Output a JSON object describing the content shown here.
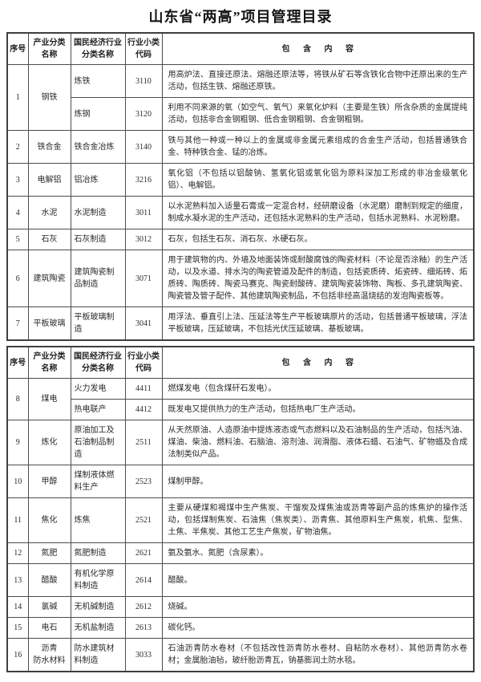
{
  "page": {
    "title": "山东省“两高”项目管理目录"
  },
  "columns": {
    "no": "序号",
    "category": "产业分类\n名称",
    "industry": "国民经济行业\n分类名称",
    "code": "行业小类\n代码",
    "content": "包 含 内 容"
  },
  "sections": [
    {
      "groups": [
        {
          "no": "1",
          "category": "钢铁",
          "rows": [
            {
              "industry": "炼铁",
              "code": "3110",
              "content": "用高炉法、直接还原法、熔融还原法等，将铁从矿石等含铁化合物中还原出来的生产活动，包括生铁、熔融还原铁。"
            },
            {
              "industry": "炼钢",
              "code": "3120",
              "content": "利用不同来源的氧（如空气、氧气）来氧化炉料（主要是生铁）所含杂质的金属提纯活动，包括非合金钢粗钢、低合金钢粗钢、合金钢粗钢。"
            }
          ]
        },
        {
          "no": "2",
          "category": "铁合金",
          "rows": [
            {
              "industry": "铁合金冶炼",
              "code": "3140",
              "content": "铁与其他一种或一种以上的金属或非金属元素组成的合金生产活动，包括普通铁合金、特种铁合金、锰的冶炼。"
            }
          ]
        },
        {
          "no": "3",
          "category": "电解铝",
          "rows": [
            {
              "industry": "铝冶炼",
              "code": "3216",
              "content": "氧化铝（不包括以铝酸钠、氢氧化铝或氧化铝为原料深加工形成的非冶金级氧化铝）、电解铝。"
            }
          ]
        },
        {
          "no": "4",
          "category": "水泥",
          "rows": [
            {
              "industry": "水泥制造",
              "code": "3011",
              "content": "以水泥熟料加入适量石膏或一定混合材，经研磨设备（水泥磨）磨制到规定的细度，制成水凝水泥的生产活动，还包括水泥熟料的生产活动，包括水泥熟料、水泥粉磨。"
            }
          ]
        },
        {
          "no": "5",
          "category": "石灰",
          "rows": [
            {
              "industry": "石灰制造",
              "code": "3012",
              "content": "石灰，包括生石灰、消石灰、水硬石灰。"
            }
          ]
        },
        {
          "no": "6",
          "category": "建筑陶瓷",
          "rows": [
            {
              "industry": "建筑陶瓷制品制造",
              "code": "3071",
              "content": "用于建筑物的内、外墙及地面装饰或耐酸腐蚀的陶瓷材料（不论是否涂釉）的生产活动，以及水道、排水沟的陶瓷管道及配件的制造，包括瓷质砖、炻瓷砖、细炻砖、炻质砖、陶质砖、陶瓷马赛克、陶瓷耐酸砖、建筑陶瓷装饰物、陶板、多孔建筑陶瓷、陶瓷管及管子配件、其他建筑陶瓷制品，不包括非经高温烧结的发泡陶瓷板等。"
            }
          ]
        },
        {
          "no": "7",
          "category": "平板玻璃",
          "rows": [
            {
              "industry": "平板玻璃制造",
              "code": "3041",
              "content": "用浮法、垂直引上法、压延法等生产平板玻璃原片的活动，包括普通平板玻璃，浮法平板玻璃，压延玻璃，不包括光伏压延玻璃、基板玻璃。"
            }
          ]
        }
      ]
    },
    {
      "groups": [
        {
          "no": "8",
          "category": "煤电",
          "rows": [
            {
              "industry": "火力发电",
              "code": "4411",
              "content": "燃煤发电（包含煤矸石发电）。"
            },
            {
              "industry": "热电联产",
              "code": "4412",
              "content": "既发电又提供热力的生产活动，包括热电厂生产活动。"
            }
          ]
        },
        {
          "no": "9",
          "category": "炼化",
          "rows": [
            {
              "industry": "原油加工及石油制品制造",
              "code": "2511",
              "content": "从天然原油、人造原油中提炼液态或气态燃料以及石油制品的生产活动，包括汽油、煤油、柴油、燃料油、石脑油、溶剂油、润滑脂、液体石蜡、石油气、矿物蜡及合成法制类似产品。"
            }
          ]
        },
        {
          "no": "10",
          "category": "甲醇",
          "rows": [
            {
              "industry": "煤制液体燃料生产",
              "code": "2523",
              "content": "煤制甲醇。"
            }
          ]
        },
        {
          "no": "11",
          "category": "焦化",
          "rows": [
            {
              "industry": "炼焦",
              "code": "2521",
              "content": "主要从硬煤和褐煤中生产焦炭、干馏炭及煤焦油或沥青等副产品的炼焦炉的操作活动，包括煤制焦炭、石油焦（焦炭类）、沥青焦、其他原料生产焦炭，机焦、型焦、土焦、半焦炭、其他工艺生产焦炭，矿物油焦。"
            }
          ]
        },
        {
          "no": "12",
          "category": "氮肥",
          "rows": [
            {
              "industry": "氮肥制造",
              "code": "2621",
              "content": "氨及氨水、氮肥（含尿素）。"
            }
          ]
        },
        {
          "no": "13",
          "category": "醋酸",
          "rows": [
            {
              "industry": "有机化学原料制造",
              "code": "2614",
              "content": "醋酸。"
            }
          ]
        },
        {
          "no": "14",
          "category": "氯碱",
          "rows": [
            {
              "industry": "无机碱制造",
              "code": "2612",
              "content": "烧碱。"
            }
          ]
        },
        {
          "no": "15",
          "category": "电石",
          "rows": [
            {
              "industry": "无机盐制造",
              "code": "2613",
              "content": "碳化钙。"
            }
          ]
        },
        {
          "no": "16",
          "category": "沥青\n防水材料",
          "rows": [
            {
              "industry": "防水建筑材料制造",
              "code": "3033",
              "content": "石油沥青防水卷材（不包括改性沥青防水卷材、自粘防水卷材）、其他沥青防水卷材；金属胎油毡，玻纤胎沥青瓦，钠基膨润土防水毯。"
            }
          ]
        }
      ]
    }
  ]
}
